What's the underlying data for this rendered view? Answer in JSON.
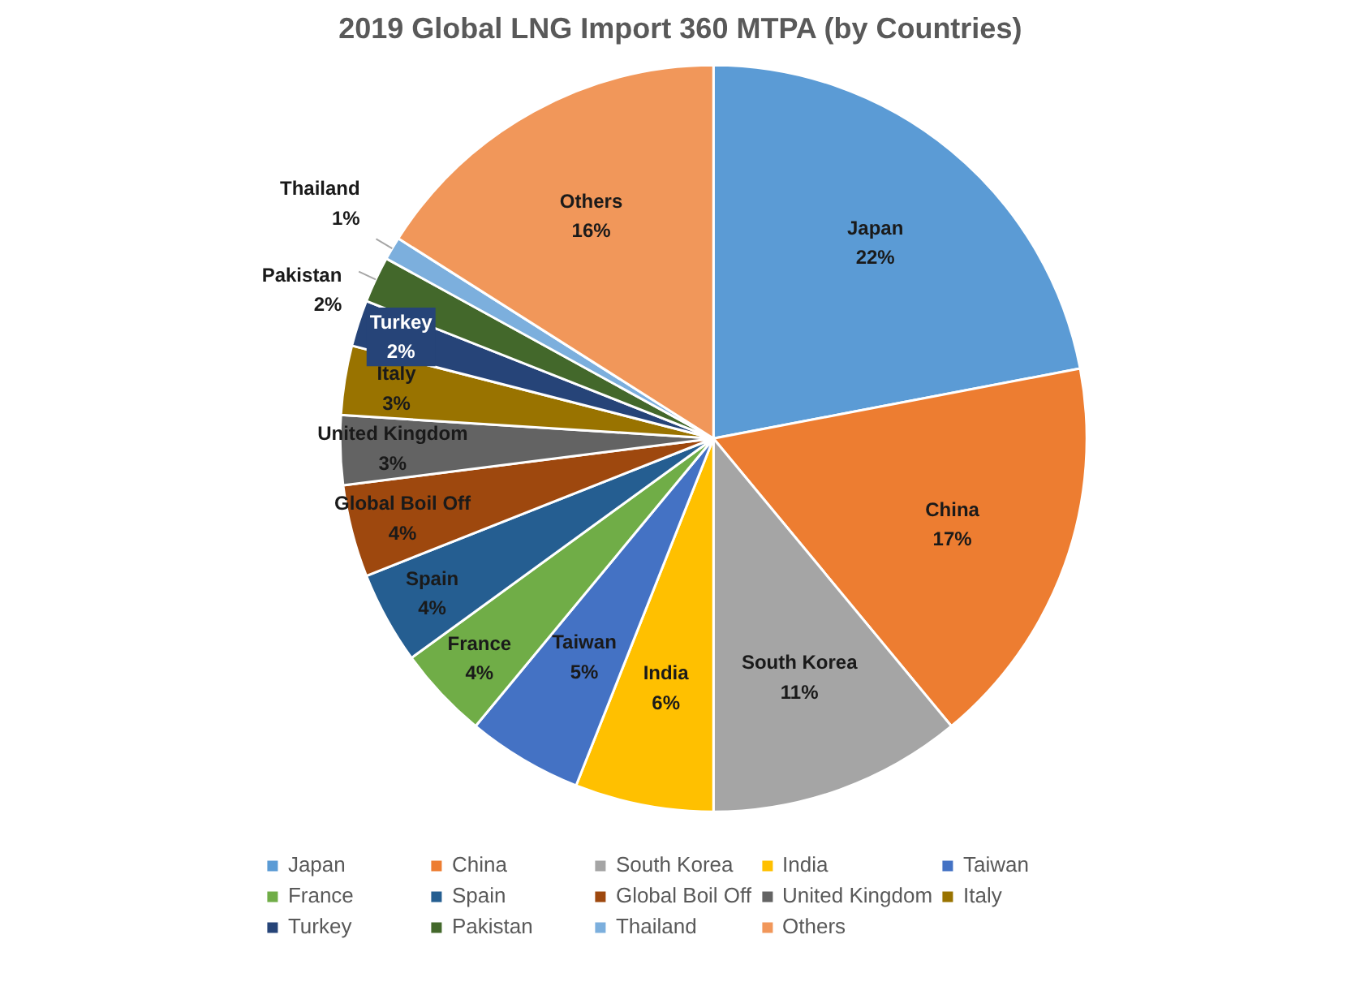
{
  "chart_data": {
    "type": "pie",
    "title": "2019 Global LNG Import 360 MTPA (by Countries)",
    "categories": [
      "Japan",
      "China",
      "South Korea",
      "India",
      "Taiwan",
      "France",
      "Spain",
      "Global Boil Off",
      "United Kingdom",
      "Italy",
      "Turkey",
      "Pakistan",
      "Thailand",
      "Others"
    ],
    "values": [
      22,
      17,
      11,
      6,
      5,
      4,
      4,
      4,
      3,
      3,
      2,
      2,
      1,
      16
    ],
    "colors": [
      "#5b9bd5",
      "#ed7d31",
      "#a5a5a5",
      "#ffc000",
      "#4472c4",
      "#70ad47",
      "#255e91",
      "#9e480e",
      "#636363",
      "#997300",
      "#264478",
      "#43682b",
      "#7cafdd",
      "#f1975a"
    ],
    "value_labels": [
      "22%",
      "17%",
      "11%",
      "6%",
      "5%",
      "4%",
      "4%",
      "4%",
      "3%",
      "3%",
      "2%",
      "2%",
      "1%",
      "16%"
    ],
    "data_labels": true,
    "legend": "bottom"
  }
}
